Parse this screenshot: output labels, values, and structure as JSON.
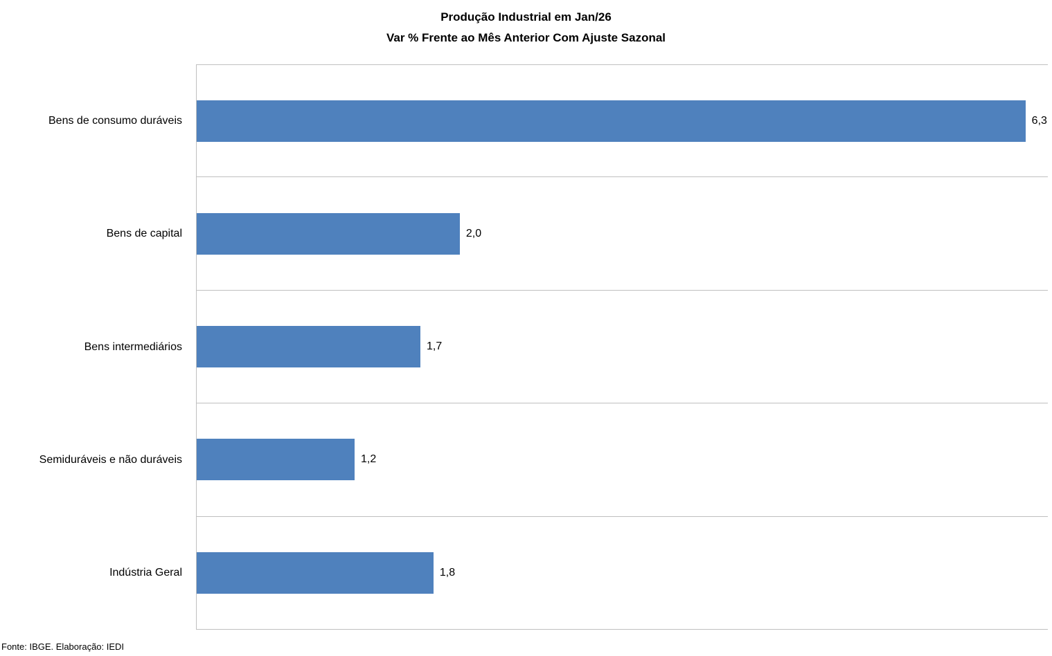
{
  "chart_data": {
    "type": "bar",
    "orientation": "horizontal",
    "title": "Produção Industrial em Jan/26",
    "subtitle": "Var % Frente ao Mês Anterior Com Ajuste Sazonal",
    "categories": [
      "Bens de consumo duráveis",
      "Bens de capital",
      "Bens intermediários",
      "Semiduráveis e não duráveis",
      "Indústria Geral"
    ],
    "values": [
      6.3,
      2.0,
      1.7,
      1.2,
      1.8
    ],
    "value_labels": [
      "6,3",
      "2,0",
      "1,7",
      "1,2",
      "1,8"
    ],
    "xlim": [
      0,
      6.47
    ],
    "xlabel": "",
    "ylabel": "",
    "legend": "none",
    "grid": "category-band-separators",
    "bar_color": "#4F81BD",
    "gridline_color": "#BFBFBF",
    "source_note": "Fonte: IBGE. Elaboração: IEDI"
  }
}
